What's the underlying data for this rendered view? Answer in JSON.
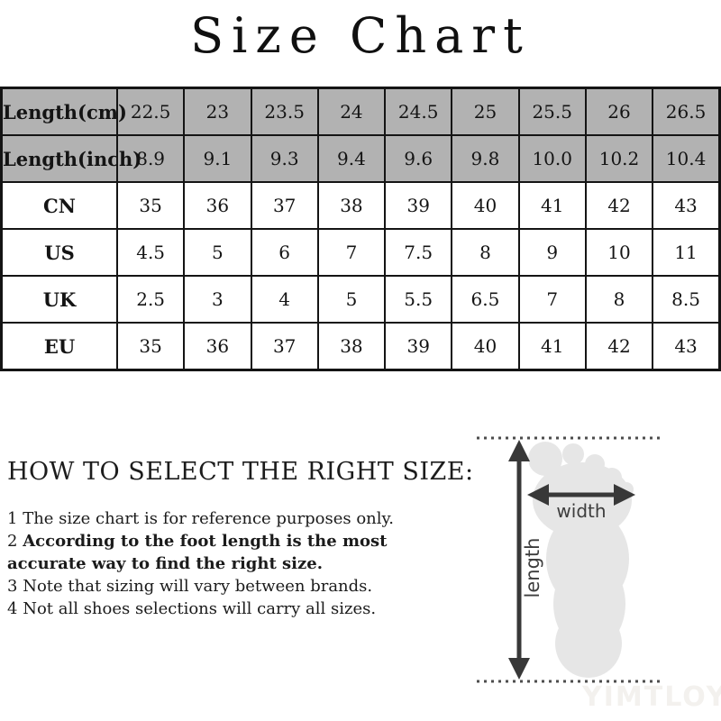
{
  "title": "Size Chart",
  "table": {
    "rows": [
      {
        "label": "Length(cm)",
        "shaded": true,
        "values": [
          "22.5",
          "23",
          "23.5",
          "24",
          "24.5",
          "25",
          "25.5",
          "26",
          "26.5"
        ]
      },
      {
        "label": "Length(inch)",
        "shaded": true,
        "values": [
          "8.9",
          "9.1",
          "9.3",
          "9.4",
          "9.6",
          "9.8",
          "10.0",
          "10.2",
          "10.4"
        ]
      },
      {
        "label": "CN",
        "shaded": false,
        "values": [
          "35",
          "36",
          "37",
          "38",
          "39",
          "40",
          "41",
          "42",
          "43"
        ]
      },
      {
        "label": "US",
        "shaded": false,
        "values": [
          "4.5",
          "5",
          "6",
          "7",
          "7.5",
          "8",
          "9",
          "10",
          "11"
        ]
      },
      {
        "label": "UK",
        "shaded": false,
        "values": [
          "2.5",
          "3",
          "4",
          "5",
          "5.5",
          "6.5",
          "7",
          "8",
          "8.5"
        ]
      },
      {
        "label": "EU",
        "shaded": false,
        "values": [
          "35",
          "36",
          "37",
          "38",
          "39",
          "40",
          "41",
          "42",
          "43"
        ]
      }
    ]
  },
  "guide": {
    "heading": "HOW TO SELECT THE RIGHT SIZE:",
    "notes": [
      {
        "num": "1",
        "text": "The size chart is for reference purposes only.",
        "bold": false
      },
      {
        "num": "2",
        "text": "According to the foot length is the most accurate way to find the right size.",
        "bold": true
      },
      {
        "num": "3",
        "text": "Note that sizing will vary between brands.",
        "bold": false
      },
      {
        "num": "4",
        "text": "Not all shoes selections will carry all sizes.",
        "bold": false
      }
    ]
  },
  "diagram": {
    "width_label": "width",
    "length_label": "length"
  },
  "watermark": "YIMTLOY",
  "colors": {
    "header_row_bg": "#b2b2b2",
    "table_border": "#141414",
    "foot_fill": "#e6e6e6",
    "arrow": "#383838",
    "dotted_line": "#4d4d4d",
    "watermark": "#f3f1ee"
  }
}
